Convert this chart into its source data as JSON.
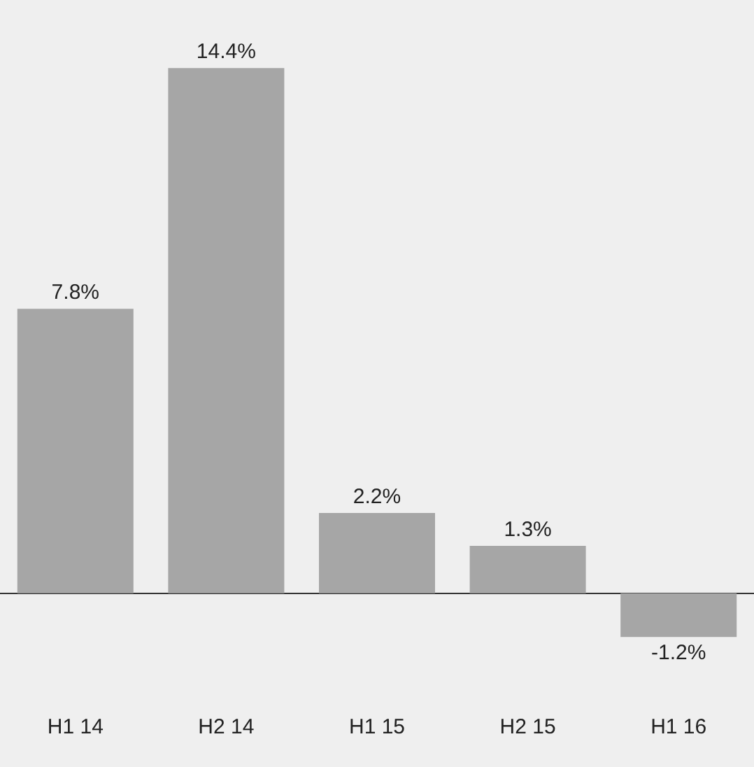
{
  "chart_data": {
    "type": "bar",
    "categories": [
      "H1 14",
      "H2 14",
      "H1 15",
      "H2 15",
      "H1 16"
    ],
    "values": [
      7.8,
      14.4,
      2.2,
      1.3,
      -1.2
    ],
    "value_labels": [
      "7.8%",
      "14.4%",
      "2.2%",
      "1.3%",
      "-1.2%"
    ],
    "color": "#a6a6a6",
    "grid": false,
    "legend": false
  }
}
